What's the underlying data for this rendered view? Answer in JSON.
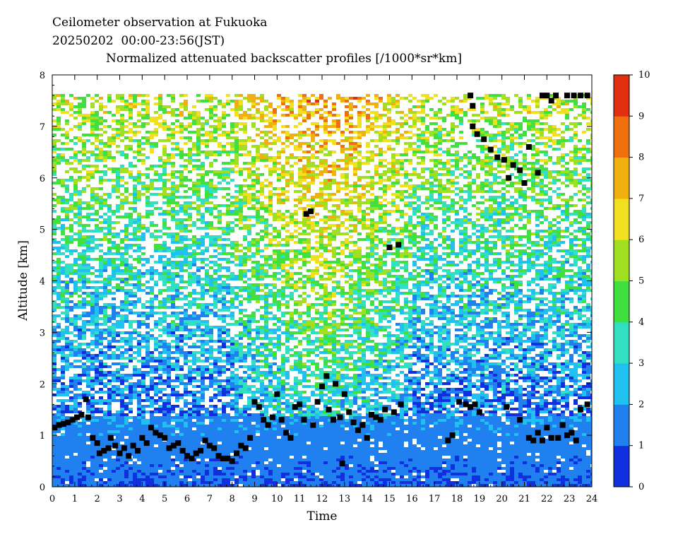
{
  "title_line1": "Ceilometer observation at Fukuoka",
  "title_line2": "20250202  00:00-23:56(JST)",
  "title_line3": "Normalized attenuated backscatter profiles [/1000*sr*km]",
  "chart_data": {
    "type": "heatmap",
    "title": "Normalized attenuated backscatter profiles [/1000*sr*km]",
    "xlabel": "Time",
    "ylabel": "Altitude [km]",
    "xlim": [
      0,
      24
    ],
    "ylim": [
      0,
      8
    ],
    "x_ticks": [
      "0",
      "1",
      "2",
      "3",
      "4",
      "5",
      "6",
      "7",
      "8",
      "9",
      "10",
      "11",
      "12",
      "13",
      "14",
      "15",
      "16",
      "17",
      "18",
      "19",
      "20",
      "21",
      "22",
      "23",
      "24"
    ],
    "y_ticks": [
      "0",
      "1",
      "2",
      "3",
      "4",
      "5",
      "6",
      "7",
      "8"
    ],
    "colorbar": {
      "range": [
        0,
        10
      ],
      "ticks": [
        "0",
        "1",
        "2",
        "3",
        "4",
        "5",
        "6",
        "7",
        "8",
        "9",
        "10"
      ],
      "colors": [
        "#1030e0",
        "#2080f0",
        "#20c0f0",
        "#30e0c0",
        "#40e040",
        "#a0e020",
        "#f0e020",
        "#f0b010",
        "#f07010",
        "#e03010"
      ]
    },
    "data_top_km": 7.65,
    "cloud_base_points": [
      [
        0.1,
        1.15
      ],
      [
        0.3,
        1.2
      ],
      [
        0.5,
        1.22
      ],
      [
        0.7,
        1.25
      ],
      [
        0.9,
        1.3
      ],
      [
        1.1,
        1.35
      ],
      [
        1.3,
        1.4
      ],
      [
        1.5,
        1.7
      ],
      [
        1.6,
        1.35
      ],
      [
        1.8,
        0.95
      ],
      [
        2.0,
        0.85
      ],
      [
        2.1,
        0.65
      ],
      [
        2.3,
        0.7
      ],
      [
        2.5,
        0.75
      ],
      [
        2.6,
        0.95
      ],
      [
        2.8,
        0.8
      ],
      [
        3.0,
        0.65
      ],
      [
        3.2,
        0.75
      ],
      [
        3.4,
        0.6
      ],
      [
        3.6,
        0.8
      ],
      [
        3.8,
        0.7
      ],
      [
        4.0,
        0.95
      ],
      [
        4.2,
        0.85
      ],
      [
        4.4,
        1.15
      ],
      [
        4.6,
        1.05
      ],
      [
        4.8,
        1.0
      ],
      [
        5.0,
        0.95
      ],
      [
        5.2,
        0.75
      ],
      [
        5.4,
        0.8
      ],
      [
        5.6,
        0.85
      ],
      [
        5.8,
        0.7
      ],
      [
        6.0,
        0.6
      ],
      [
        6.2,
        0.55
      ],
      [
        6.4,
        0.65
      ],
      [
        6.6,
        0.7
      ],
      [
        6.8,
        0.9
      ],
      [
        7.0,
        0.8
      ],
      [
        7.2,
        0.75
      ],
      [
        7.4,
        0.6
      ],
      [
        7.6,
        0.55
      ],
      [
        7.8,
        0.55
      ],
      [
        8.0,
        0.5
      ],
      [
        8.2,
        0.65
      ],
      [
        8.4,
        0.8
      ],
      [
        8.6,
        0.75
      ],
      [
        8.8,
        0.95
      ],
      [
        9.0,
        1.65
      ],
      [
        9.2,
        1.55
      ],
      [
        9.4,
        1.3
      ],
      [
        9.6,
        1.2
      ],
      [
        9.8,
        1.35
      ],
      [
        10.0,
        1.8
      ],
      [
        10.2,
        1.3
      ],
      [
        10.4,
        1.05
      ],
      [
        10.6,
        0.95
      ],
      [
        10.8,
        1.55
      ],
      [
        11.0,
        1.6
      ],
      [
        11.2,
        1.3
      ],
      [
        11.3,
        5.3
      ],
      [
        11.5,
        5.35
      ],
      [
        11.6,
        1.2
      ],
      [
        11.8,
        1.65
      ],
      [
        12.0,
        1.95
      ],
      [
        12.2,
        2.15
      ],
      [
        12.3,
        1.5
      ],
      [
        12.5,
        1.3
      ],
      [
        12.6,
        2.0
      ],
      [
        12.8,
        1.35
      ],
      [
        12.9,
        0.45
      ],
      [
        13.0,
        1.8
      ],
      [
        13.2,
        1.45
      ],
      [
        13.4,
        1.25
      ],
      [
        13.6,
        1.1
      ],
      [
        13.8,
        1.2
      ],
      [
        14.0,
        0.95
      ],
      [
        14.2,
        1.4
      ],
      [
        14.4,
        1.35
      ],
      [
        14.6,
        1.3
      ],
      [
        14.8,
        1.5
      ],
      [
        15.0,
        4.65
      ],
      [
        15.2,
        1.45
      ],
      [
        15.4,
        4.7
      ],
      [
        15.5,
        1.6
      ],
      [
        17.6,
        0.9
      ],
      [
        17.8,
        1.0
      ],
      [
        18.1,
        1.65
      ],
      [
        18.4,
        1.6
      ],
      [
        18.6,
        1.55
      ],
      [
        18.8,
        1.6
      ],
      [
        19.0,
        1.45
      ],
      [
        18.7,
        7.0
      ],
      [
        18.9,
        6.85
      ],
      [
        19.2,
        6.75
      ],
      [
        19.5,
        6.55
      ],
      [
        19.8,
        6.4
      ],
      [
        20.1,
        6.35
      ],
      [
        20.3,
        6.0
      ],
      [
        20.5,
        6.25
      ],
      [
        20.8,
        6.15
      ],
      [
        21.0,
        5.9
      ],
      [
        21.2,
        6.6
      ],
      [
        21.6,
        6.1
      ],
      [
        18.6,
        7.6
      ],
      [
        18.7,
        7.4
      ],
      [
        21.8,
        7.6
      ],
      [
        22.0,
        7.6
      ],
      [
        22.2,
        7.5
      ],
      [
        22.4,
        7.6
      ],
      [
        22.9,
        7.6
      ],
      [
        23.2,
        7.6
      ],
      [
        23.5,
        7.6
      ],
      [
        23.8,
        7.6
      ],
      [
        20.2,
        1.55
      ],
      [
        20.8,
        1.3
      ],
      [
        21.2,
        0.95
      ],
      [
        21.4,
        0.9
      ],
      [
        21.6,
        1.05
      ],
      [
        21.8,
        0.9
      ],
      [
        22.0,
        1.15
      ],
      [
        22.2,
        0.95
      ],
      [
        22.5,
        0.95
      ],
      [
        22.7,
        1.2
      ],
      [
        22.9,
        1.0
      ],
      [
        23.1,
        1.05
      ],
      [
        23.3,
        0.9
      ],
      [
        23.5,
        1.5
      ],
      [
        23.8,
        1.6
      ]
    ]
  }
}
